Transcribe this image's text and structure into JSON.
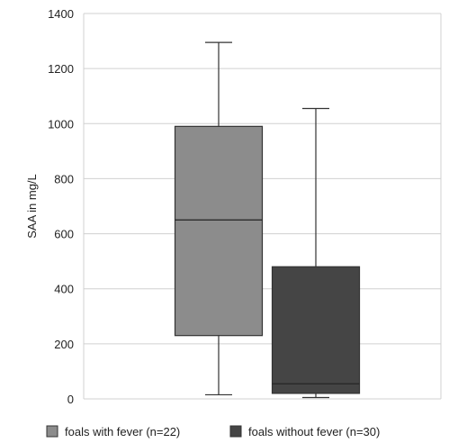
{
  "chart_data": {
    "type": "boxplot",
    "title": "",
    "xlabel": "",
    "ylabel": "SAA in mg/L",
    "ylim": [
      0,
      1400
    ],
    "yticks": [
      "0",
      "200",
      "400",
      "600",
      "800",
      "1000",
      "1200",
      "1400"
    ],
    "grid": true,
    "legend_position": "bottom",
    "series": [
      {
        "name": "foals with fever (n=22)",
        "color": "#8c8c8c",
        "whisker_low": 15,
        "q1": 230,
        "median": 650,
        "q3": 990,
        "whisker_high": 1295
      },
      {
        "name": "foals without fever (n=30)",
        "color": "#454545",
        "whisker_low": 5,
        "q1": 20,
        "median": 55,
        "q3": 480,
        "whisker_high": 1055
      }
    ]
  }
}
